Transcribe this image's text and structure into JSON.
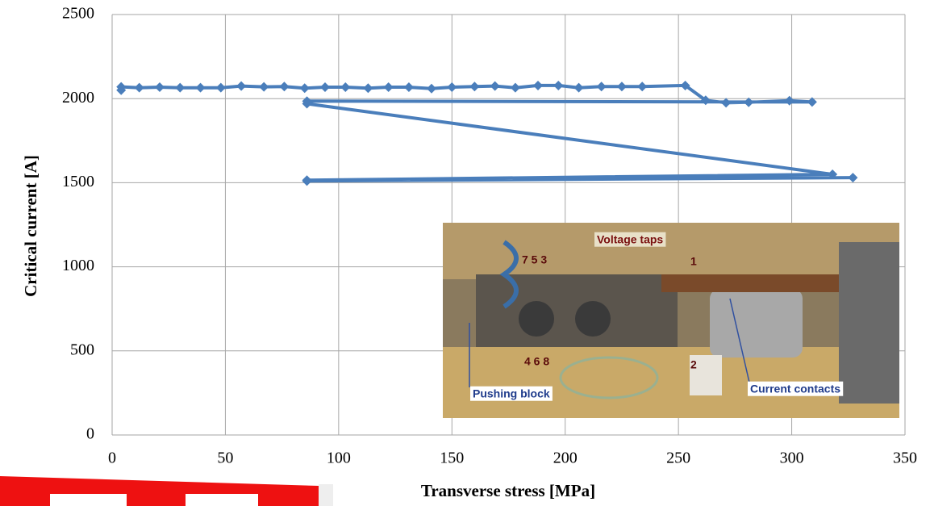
{
  "chart_data": {
    "type": "line",
    "xlabel": "Transverse stress [MPa]",
    "ylabel": "Critical current [A]",
    "xlim": [
      0,
      350
    ],
    "xticks": [
      0,
      50,
      100,
      150,
      200,
      250,
      300,
      350
    ],
    "ylim": [
      0,
      2500
    ],
    "yticks": [
      0,
      500,
      1000,
      1500,
      2000,
      2500
    ],
    "grid": true,
    "series": [
      {
        "color": "#4a7ebb",
        "x": [
          4,
          4,
          12,
          21,
          30,
          39,
          48,
          57,
          67,
          76,
          85,
          94,
          103,
          113,
          122,
          131,
          141,
          150,
          160,
          169,
          178,
          188,
          197,
          206,
          216,
          225,
          234,
          253,
          262,
          271,
          281,
          299,
          309,
          86,
          86,
          318,
          86,
          86,
          327
        ],
        "values": [
          2050,
          2070,
          2065,
          2068,
          2065,
          2065,
          2065,
          2075,
          2070,
          2072,
          2062,
          2068,
          2068,
          2062,
          2068,
          2068,
          2060,
          2068,
          2072,
          2075,
          2065,
          2078,
          2078,
          2065,
          2072,
          2072,
          2072,
          2078,
          1990,
          1975,
          1978,
          1988,
          1980,
          1985,
          1970,
          1550,
          1515,
          1510,
          1530
        ]
      }
    ],
    "annotations": [
      "Voltage taps",
      "7 5 3",
      "1",
      "4 6 8",
      "2",
      "Pushing block",
      "Current contacts"
    ]
  }
}
